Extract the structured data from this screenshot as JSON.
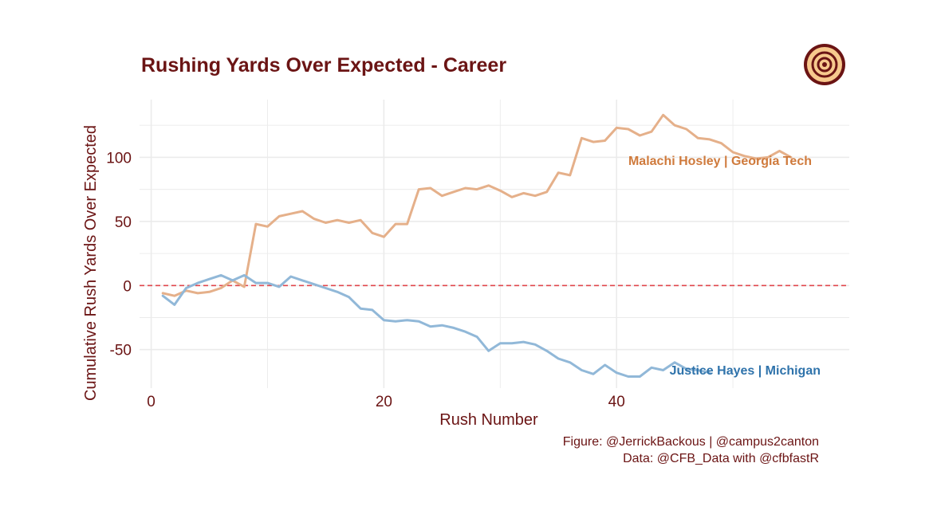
{
  "chart_data": {
    "type": "line",
    "title": "Rushing Yards Over Expected - Career",
    "xlabel": "Rush Number",
    "ylabel": "Cumulative Rush Yards Over Expected",
    "xlim": [
      -1,
      60
    ],
    "ylim": [
      -80,
      145
    ],
    "x_ticks": [
      {
        "value": 0,
        "label": "0"
      },
      {
        "value": 20,
        "label": "20"
      },
      {
        "value": 40,
        "label": "40"
      }
    ],
    "y_ticks": [
      {
        "value": -50,
        "label": "-50"
      },
      {
        "value": 0,
        "label": "0"
      },
      {
        "value": 50,
        "label": "50"
      },
      {
        "value": 100,
        "label": "100"
      }
    ],
    "reference_line": {
      "y": 0,
      "style": "dashed",
      "color": "#e0474c"
    },
    "grid": true,
    "series": [
      {
        "name": "Malachi Hosley | Georgia Tech",
        "label": "Malachi Hosley | Georgia Tech",
        "line_color": "#e5b08a",
        "label_color": "#cf7a3c",
        "x": [
          1,
          2,
          3,
          4,
          5,
          6,
          7,
          8,
          9,
          10,
          11,
          12,
          13,
          14,
          15,
          16,
          17,
          18,
          19,
          20,
          21,
          22,
          23,
          24,
          25,
          26,
          27,
          28,
          29,
          30,
          31,
          32,
          33,
          34,
          35,
          36,
          37,
          38,
          39,
          40,
          41,
          42,
          43,
          44,
          45,
          46,
          47,
          48,
          49,
          50,
          51,
          52,
          53,
          54,
          55
        ],
        "values": [
          -6,
          -8,
          -4,
          -6,
          -5,
          -2,
          4,
          -1,
          48,
          46,
          54,
          56,
          58,
          52,
          49,
          51,
          49,
          51,
          41,
          38,
          48,
          48,
          75,
          76,
          70,
          73,
          76,
          75,
          78,
          74,
          69,
          72,
          70,
          73,
          88,
          86,
          115,
          112,
          113,
          123,
          122,
          117,
          120,
          133,
          125,
          122,
          115,
          114,
          111,
          104,
          101,
          99,
          100,
          105,
          100
        ]
      },
      {
        "name": "Justice Hayes | Michigan",
        "label": "Justice Hayes | Michigan",
        "line_color": "#91b8d8",
        "label_color": "#2f73ab",
        "x": [
          1,
          2,
          3,
          4,
          5,
          6,
          7,
          8,
          9,
          10,
          11,
          12,
          13,
          14,
          15,
          16,
          17,
          18,
          19,
          20,
          21,
          22,
          23,
          24,
          25,
          26,
          27,
          28,
          29,
          30,
          31,
          32,
          33,
          34,
          35,
          36,
          37,
          38,
          39,
          40,
          41,
          42,
          43,
          44,
          45,
          46,
          47,
          48
        ],
        "values": [
          -8,
          -15,
          -2,
          2,
          5,
          8,
          4,
          8,
          2,
          2,
          -1,
          7,
          4,
          1,
          -2,
          -5,
          -9,
          -18,
          -19,
          -27,
          -28,
          -27,
          -28,
          -32,
          -31,
          -33,
          -36,
          -40,
          -51,
          -45,
          -45,
          -44,
          -46,
          -51,
          -57,
          -60,
          -66,
          -69,
          -62,
          -68,
          -71,
          -71,
          -64,
          -66,
          -60,
          -65,
          -66,
          -68
        ]
      }
    ]
  },
  "caption": {
    "line1": "Figure: @JerrickBackous | @campus2canton",
    "line2": "Data: @CFB_Data with @cfbfastR"
  },
  "colors": {
    "title": "#6b1414",
    "axis_text": "#6b1414",
    "grid": "#ebebeb",
    "logo_ring": "#6b1414",
    "logo_fill": "#f7c98d"
  },
  "logo": {
    "name": "campus2canton-logo"
  }
}
